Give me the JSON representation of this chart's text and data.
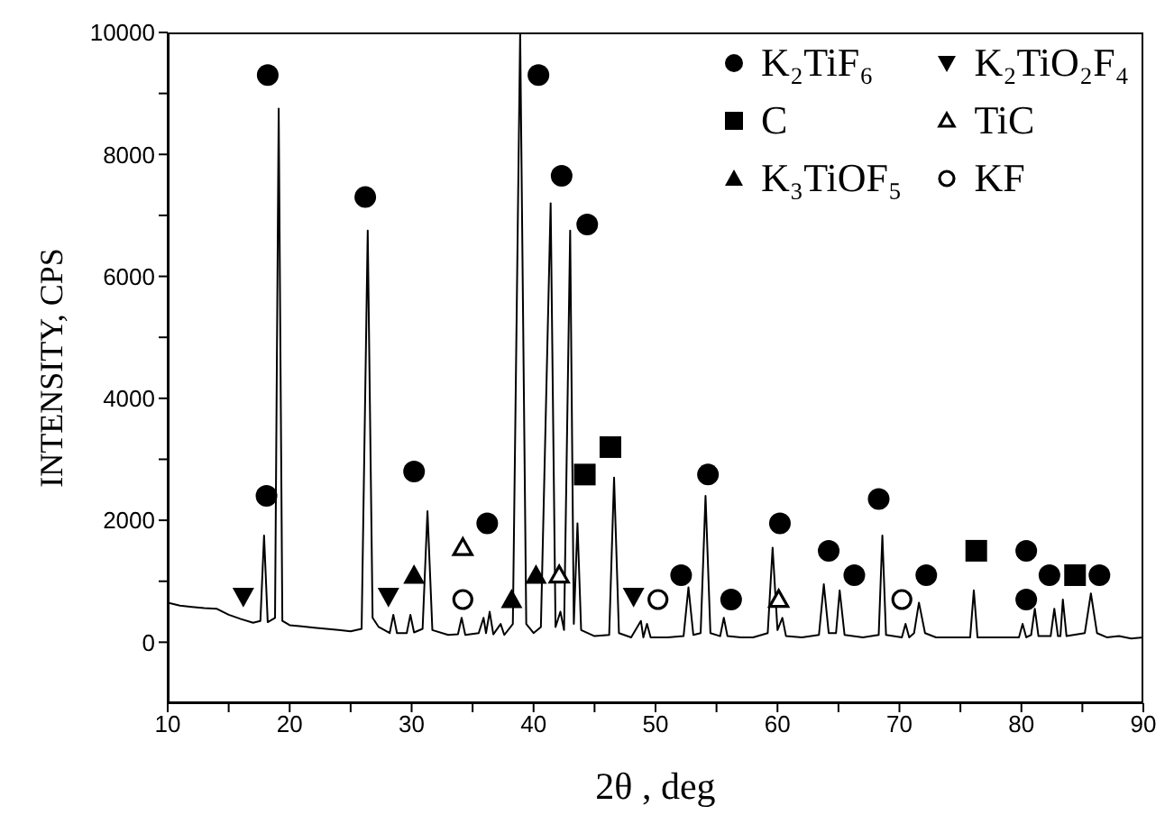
{
  "chart_data": {
    "type": "line",
    "xlabel": "2θ , deg",
    "ylabel": "INTENSITY, CPS",
    "xlim": [
      10,
      90
    ],
    "ylim": [
      -1000,
      10000
    ],
    "xticks": [
      10,
      {
        "value": 15,
        "label": null
      },
      20,
      {
        "value": 25,
        "label": null
      },
      30,
      {
        "value": 35,
        "label": null
      },
      40,
      {
        "value": 45,
        "label": null
      },
      50,
      {
        "value": 55,
        "label": null
      },
      60,
      {
        "value": 65,
        "label": null
      },
      70,
      {
        "value": 75,
        "label": null
      },
      80,
      {
        "value": 85,
        "label": null
      },
      90
    ],
    "yticks": [
      0,
      {
        "value": 1000,
        "label": null
      },
      2000,
      {
        "value": 3000,
        "label": null
      },
      4000,
      {
        "value": 5000,
        "label": null
      },
      6000,
      {
        "value": 7000,
        "label": null
      },
      8000,
      {
        "value": 9000,
        "label": null
      },
      10000
    ],
    "grid": false,
    "legend": "top right",
    "series": [
      {
        "color": "#000000",
        "marker": "none",
        "x": [
          10,
          11,
          12,
          13,
          14,
          15,
          16,
          17,
          17.6,
          17.9,
          18.2,
          18.8,
          19.1,
          19.4,
          20,
          21,
          22,
          23,
          24,
          25,
          25.9,
          26.4,
          26.8,
          27.3,
          28.2,
          28.5,
          28.8,
          29.6,
          29.9,
          30.2,
          30.9,
          31.3,
          31.7,
          33,
          33.8,
          34.1,
          34.4,
          35.5,
          35.9,
          36.1,
          36.4,
          36.7,
          37.3,
          37.6,
          38.3,
          38.9,
          39.4,
          40,
          40.6,
          41.4,
          41.8,
          42.2,
          42.5,
          43,
          43.3,
          43.6,
          43.9,
          45,
          46.2,
          46.6,
          47,
          48,
          48.8,
          49,
          49.3,
          49.6,
          51,
          52.3,
          52.7,
          53.1,
          53.7,
          54.1,
          54.5,
          55.3,
          55.6,
          55.9,
          57,
          58,
          59.2,
          59.6,
          60,
          60.4,
          60.7,
          62,
          63.4,
          63.8,
          64.2,
          64.8,
          65.1,
          65.5,
          67,
          68.3,
          68.6,
          68.9,
          70.2,
          70.5,
          70.8,
          71.2,
          71.6,
          72.1,
          73,
          75,
          75.8,
          76.1,
          76.4,
          78,
          79.8,
          80.1,
          80.4,
          80.8,
          81.1,
          81.4,
          82.4,
          82.7,
          83,
          83.2,
          83.4,
          83.7,
          85.2,
          85.7,
          86.2,
          87,
          88,
          89,
          90
        ],
        "values": [
          650,
          600,
          580,
          560,
          550,
          450,
          380,
          320,
          350,
          1750,
          330,
          400,
          8750,
          350,
          280,
          260,
          240,
          220,
          200,
          180,
          220,
          6750,
          400,
          250,
          150,
          450,
          150,
          150,
          450,
          160,
          220,
          2150,
          200,
          120,
          130,
          400,
          120,
          150,
          400,
          150,
          500,
          130,
          300,
          120,
          300,
          10000,
          300,
          150,
          250,
          7200,
          250,
          500,
          200,
          6750,
          300,
          1950,
          200,
          100,
          120,
          2700,
          150,
          80,
          350,
          80,
          300,
          80,
          80,
          100,
          900,
          120,
          150,
          2400,
          150,
          100,
          400,
          100,
          80,
          80,
          150,
          1550,
          200,
          400,
          100,
          80,
          120,
          950,
          150,
          150,
          850,
          120,
          80,
          120,
          1750,
          120,
          80,
          300,
          80,
          150,
          650,
          150,
          80,
          80,
          80,
          850,
          80,
          80,
          80,
          300,
          80,
          120,
          550,
          100,
          100,
          550,
          100,
          100,
          700,
          100,
          150,
          800,
          150,
          80,
          100,
          60,
          80
        ]
      },
      {
        "type": "scatter",
        "name": "K₂TiF₆",
        "color": "#000000",
        "marker": "circle",
        "x": [
          18.2,
          18.1,
          26.2,
          30.2,
          36.2,
          40.4,
          42.3,
          44.4,
          52.1,
          54.3,
          56.2,
          60.2,
          64.2,
          66.3,
          68.3,
          72.2,
          80.4,
          80.4,
          82.3,
          86.4
        ],
        "values": [
          9300,
          2400,
          7300,
          2800,
          1950,
          9300,
          7650,
          6850,
          1100,
          2750,
          700,
          1950,
          1500,
          1100,
          2350,
          1100,
          1500,
          700,
          1100,
          1100
        ]
      },
      {
        "type": "scatter",
        "name": "K₂TiO₂F₄",
        "color": "#000000",
        "marker": "triangle_down",
        "x": [
          16.2,
          28.1,
          48.2
        ],
        "values": [
          750,
          750,
          750
        ]
      },
      {
        "type": "scatter",
        "name": "C",
        "color": "#000000",
        "marker": "square",
        "x": [
          44.2,
          46.3,
          76.3,
          84.4
        ],
        "values": [
          2750,
          3200,
          1500,
          1100
        ]
      },
      {
        "type": "scatter",
        "name": "TiC",
        "color": "#000000",
        "marker": "triangle_open",
        "x": [
          34.2,
          42.1,
          60.1
        ],
        "values": [
          1550,
          1100,
          700
        ]
      },
      {
        "type": "scatter",
        "name": "K₃TiOF₅",
        "color": "#000000",
        "marker": "triangle",
        "x": [
          30.2,
          38.2,
          40.2
        ],
        "values": [
          1100,
          700,
          1100
        ]
      },
      {
        "type": "scatter",
        "name": "KF",
        "color": "#000000",
        "marker": "circle_open",
        "x": [
          34.2,
          50.2,
          70.2
        ],
        "values": [
          700,
          700,
          700
        ]
      }
    ]
  }
}
